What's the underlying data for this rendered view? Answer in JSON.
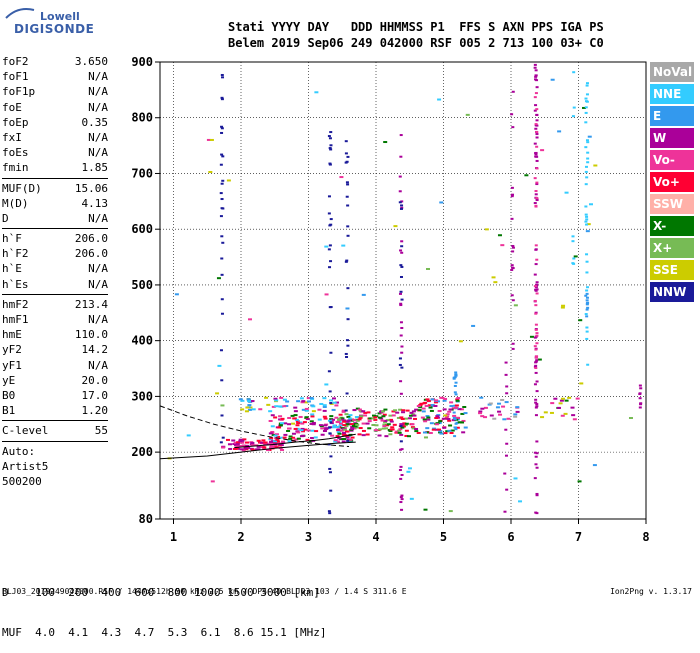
{
  "logo": {
    "line1": "Lowell",
    "line2": "DIGISONDE"
  },
  "header": {
    "line1": "Stati YYYY DAY   DDD HHMMSS P1  FFS S AXN PPS IGA PS",
    "line2": "Belem 2019 Sep06 249 042000 RSF 005 2 713 100 03+ C0"
  },
  "params": {
    "group1": [
      {
        "name": "foF2",
        "value": "3.650"
      },
      {
        "name": "foF1",
        "value": "N/A"
      },
      {
        "name": "foF1p",
        "value": "N/A"
      },
      {
        "name": "foE",
        "value": "N/A"
      },
      {
        "name": "foEp",
        "value": "0.35"
      },
      {
        "name": "fxI",
        "value": "N/A"
      },
      {
        "name": "foEs",
        "value": "N/A"
      },
      {
        "name": "fmin",
        "value": "1.85"
      }
    ],
    "group2": [
      {
        "name": "MUF(D)",
        "value": "15.06"
      },
      {
        "name": "M(D)",
        "value": "4.13"
      },
      {
        "name": "D",
        "value": "N/A"
      }
    ],
    "group3": [
      {
        "name": "h`F",
        "value": "206.0"
      },
      {
        "name": "h`F2",
        "value": "206.0"
      },
      {
        "name": "h`E",
        "value": "N/A"
      },
      {
        "name": "h`Es",
        "value": "N/A"
      }
    ],
    "group4": [
      {
        "name": "hmF2",
        "value": "213.4"
      },
      {
        "name": "hmF1",
        "value": "N/A"
      },
      {
        "name": "hmE",
        "value": "110.0"
      },
      {
        "name": "yF2",
        "value": "14.2"
      },
      {
        "name": "yF1",
        "value": "N/A"
      },
      {
        "name": "yE",
        "value": "20.0"
      },
      {
        "name": "B0",
        "value": "17.0"
      },
      {
        "name": "B1",
        "value": "1.20"
      }
    ],
    "clevel": {
      "name": "C-level",
      "value": "55"
    },
    "auto": [
      "Auto:",
      "Artist5",
      "500200"
    ]
  },
  "legend": [
    {
      "label": "NoVal",
      "color": "#a8a8a8"
    },
    {
      "label": "NNE",
      "color": "#33ccff"
    },
    {
      "label": "E",
      "color": "#3399ee"
    },
    {
      "label": "W",
      "color": "#aa0099"
    },
    {
      "label": "Vo-",
      "color": "#ee3399"
    },
    {
      "label": "Vo+",
      "color": "#ff0033"
    },
    {
      "label": "SSW",
      "color": "#ffb0a8"
    },
    {
      "label": "X-",
      "color": "#007700"
    },
    {
      "label": "X+",
      "color": "#77bb55"
    },
    {
      "label": "SSE",
      "color": "#cccc00"
    },
    {
      "label": "NNW",
      "color": "#1a1a99"
    }
  ],
  "dmuf": {
    "d_label": "D",
    "d_values": [
      "100",
      "200",
      "400",
      "600",
      "800",
      "1000",
      "1500",
      "3000"
    ],
    "d_unit": "[km]",
    "muf_label": "MUF",
    "muf_values": [
      "4.0",
      "4.1",
      "4.3",
      "4.7",
      "5.3",
      "6.1",
      "8.6",
      "15.1"
    ],
    "muf_unit": "[MHz]"
  },
  "footer": "BLJ03_2019249042000.RSF / 144fx512h 50 kHz 2.5 km / DPS-4D BLJ03 103 / 1.4 S 311.6 E",
  "version": "Ion2Png v. 1.3.17",
  "chart_data": {
    "type": "scatter",
    "xlim": [
      0.8,
      8.0
    ],
    "ylim": [
      80,
      900
    ],
    "x_ticks": [
      1,
      2,
      3,
      4,
      5,
      6,
      7,
      8
    ],
    "y_ticks": [
      80,
      200,
      300,
      400,
      500,
      600,
      700,
      800,
      900
    ],
    "grid": true,
    "traces": [
      {
        "style": "solid",
        "x": [
          0.8,
          1.5,
          2.0,
          2.5,
          3.0,
          3.4,
          3.7
        ],
        "y": [
          188,
          193,
          200,
          207,
          212,
          216,
          218
        ]
      },
      {
        "style": "dashed",
        "x": [
          0.8,
          1.2,
          1.6,
          2.0,
          2.4,
          2.8,
          3.2,
          3.6
        ],
        "y": [
          283,
          265,
          250,
          238,
          228,
          220,
          214,
          210
        ]
      },
      {
        "style": "solid",
        "x": [
          1.9,
          2.2,
          2.5,
          2.8,
          3.1,
          3.3,
          3.5,
          3.7
        ],
        "y": [
          208,
          211,
          214,
          218,
          221,
          224,
          228,
          232
        ]
      }
    ],
    "clusters": [
      {
        "x": [
          1.7,
          2.6
        ],
        "y": [
          205,
          225
        ],
        "colors": [
          "#ff0033",
          "#ee3399",
          "#aa0099"
        ],
        "n": 90
      },
      {
        "x": [
          2.4,
          3.7
        ],
        "y": [
          220,
          270
        ],
        "colors": [
          "#ff0033",
          "#ee3399",
          "#aa0099",
          "#007700",
          "#33ccff"
        ],
        "n": 160
      },
      {
        "x": [
          3.4,
          4.6
        ],
        "y": [
          230,
          280
        ],
        "colors": [
          "#ff0033",
          "#ee3399",
          "#aa0099",
          "#007700",
          "#77bb55"
        ],
        "n": 150
      },
      {
        "x": [
          4.6,
          5.3
        ],
        "y": [
          235,
          300
        ],
        "colors": [
          "#ff0033",
          "#ee3399",
          "#aa0099",
          "#3399ee",
          "#007700"
        ],
        "n": 110
      },
      {
        "x": [
          1.9,
          3.4
        ],
        "y": [
          275,
          300
        ],
        "colors": [
          "#33ccff",
          "#3399ee",
          "#aa0099",
          "#ee3399",
          "#cccc00"
        ],
        "n": 60
      },
      {
        "x": [
          5.5,
          6.1
        ],
        "y": [
          260,
          300
        ],
        "colors": [
          "#aa0099",
          "#ee3399",
          "#3399ee",
          "#a8a8a8"
        ],
        "n": 25
      },
      {
        "x": [
          6.4,
          7.0
        ],
        "y": [
          260,
          300
        ],
        "colors": [
          "#ee3399",
          "#007700",
          "#aa0099",
          "#cccc00"
        ],
        "n": 18
      },
      {
        "x": [
          0.9,
          7.9
        ],
        "y": [
          85,
          880
        ],
        "colors": [
          "#33ccff",
          "#3399ee",
          "#cccc00",
          "#77bb55",
          "#007700",
          "#ee3399"
        ],
        "n": 70
      }
    ],
    "columns": [
      {
        "x": 1.7,
        "y": [
          210,
          880
        ],
        "color": "#1a1a99",
        "n": 28
      },
      {
        "x": 3.3,
        "y": [
          90,
          780
        ],
        "color": "#1a1a99",
        "n": 34
      },
      {
        "x": 3.55,
        "y": [
          190,
          760
        ],
        "color": "#1a1a99",
        "n": 22
      },
      {
        "x": 4.35,
        "y": [
          90,
          820
        ],
        "color": "#aa0099",
        "n": 30
      },
      {
        "x": 4.35,
        "y": [
          190,
          660
        ],
        "color": "#1a1a99",
        "n": 14
      },
      {
        "x": 6.35,
        "y": [
          90,
          900
        ],
        "color": "#aa0099",
        "n": 80
      },
      {
        "x": 6.35,
        "y": [
          320,
          900
        ],
        "color": "#ee3399",
        "n": 30
      },
      {
        "x": 6.0,
        "y": [
          340,
          860
        ],
        "color": "#aa0099",
        "n": 18
      },
      {
        "x": 7.1,
        "y": [
          350,
          880
        ],
        "color": "#33ccff",
        "n": 35
      },
      {
        "x": 7.1,
        "y": [
          440,
          500
        ],
        "color": "#3399ee",
        "n": 10
      },
      {
        "x": 6.9,
        "y": [
          520,
          900
        ],
        "color": "#33ccff",
        "n": 8
      },
      {
        "x": 7.9,
        "y": [
          260,
          340
        ],
        "color": "#aa0099",
        "n": 8
      },
      {
        "x": 5.15,
        "y": [
          230,
          350
        ],
        "color": "#3399ee",
        "n": 20
      },
      {
        "x": 5.9,
        "y": [
          90,
          380
        ],
        "color": "#aa0099",
        "n": 10
      }
    ]
  }
}
